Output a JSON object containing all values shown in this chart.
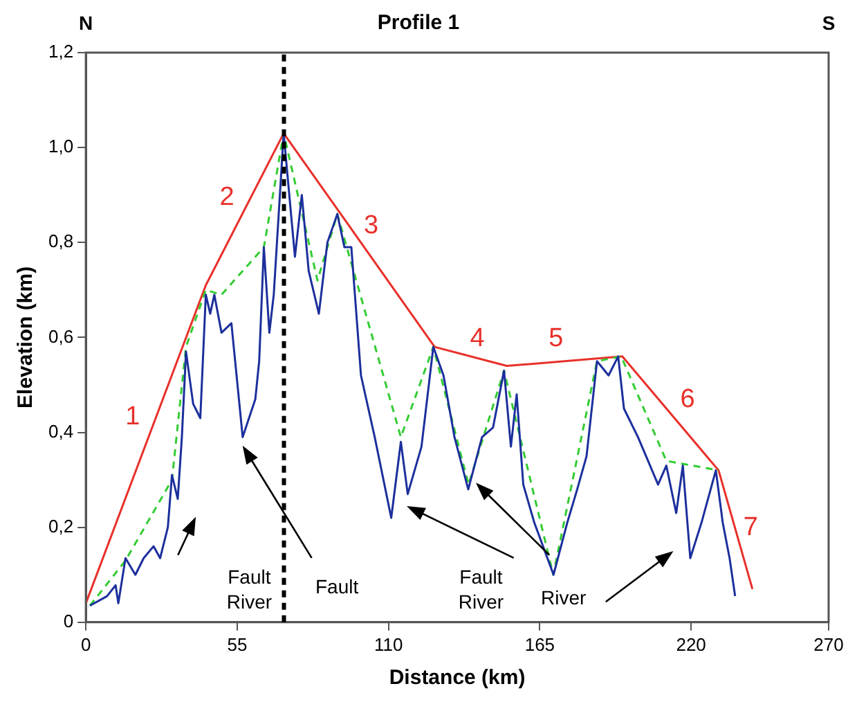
{
  "chart_data": {
    "type": "line",
    "title": "Profile 1",
    "xlabel": "Distance (km)",
    "ylabel": "Elevation (km)",
    "xlim": [
      0,
      270
    ],
    "xticks": [
      0,
      55,
      110,
      165,
      220,
      270
    ],
    "ylim": [
      0,
      1.2
    ],
    "yticks": [
      0,
      {
        "value": 0.2,
        "label": "0,2"
      },
      {
        "value": 0.4,
        "label": "0,4"
      },
      {
        "value": 0.6,
        "label": "0,6"
      },
      {
        "value": 0.8,
        "label": "0,8"
      },
      {
        "value": 1.0,
        "label": "1,0"
      },
      {
        "value": 1.2,
        "label": "1,2"
      }
    ],
    "grid": false,
    "legend": false,
    "marker": "none",
    "series": [
      {
        "color": "#1c2f9c",
        "line_style": "solid",
        "x": [
          1.5,
          7.7,
          10.8,
          11.8,
          14.4,
          18,
          21,
          24.6,
          27,
          29.8,
          31.3,
          33.4,
          34.9,
          36.4,
          39,
          41.6,
          43.6,
          45.2,
          46.7,
          49.3,
          52.9,
          57,
          61.6,
          63,
          64.7,
          66.7,
          68.3,
          71.9,
          76,
          78.5,
          81,
          84.7,
          87.8,
          91.4,
          94,
          96.5,
          100,
          105,
          111,
          114.5,
          117,
          122,
          126.3,
          130,
          134,
          139,
          144,
          148,
          152,
          154.5,
          156.6,
          159,
          163,
          170,
          175,
          178.6,
          182,
          185.8,
          190,
          193.5,
          195.6,
          200.7,
          208,
          211,
          214.6,
          217,
          219.7,
          223.8,
          229,
          231.5,
          234,
          236
        ],
        "values": [
          0.035,
          0.055,
          0.078,
          0.04,
          0.135,
          0.1,
          0.135,
          0.16,
          0.135,
          0.2,
          0.31,
          0.26,
          0.39,
          0.57,
          0.46,
          0.43,
          0.69,
          0.65,
          0.69,
          0.61,
          0.63,
          0.39,
          0.47,
          0.55,
          0.79,
          0.61,
          0.69,
          1.03,
          0.77,
          0.9,
          0.74,
          0.65,
          0.8,
          0.86,
          0.79,
          0.79,
          0.52,
          0.39,
          0.22,
          0.38,
          0.27,
          0.37,
          0.58,
          0.52,
          0.39,
          0.28,
          0.39,
          0.41,
          0.53,
          0.37,
          0.48,
          0.29,
          0.21,
          0.1,
          0.21,
          0.28,
          0.35,
          0.55,
          0.52,
          0.56,
          0.45,
          0.39,
          0.29,
          0.33,
          0.23,
          0.33,
          0.135,
          0.21,
          0.32,
          0.21,
          0.135,
          0.055
        ]
      },
      {
        "color": "#33cc33",
        "line_style": "dashed",
        "x": [
          1.5,
          14.4,
          31.3,
          36.4,
          43.6,
          49.3,
          64.7,
          71.9,
          84.2,
          91.4,
          114.5,
          126.3,
          139.1,
          152,
          169.9,
          185.8,
          194.6,
          211,
          230
        ],
        "values": [
          0.035,
          0.13,
          0.3,
          0.58,
          0.7,
          0.69,
          0.79,
          1.03,
          0.72,
          0.86,
          0.39,
          0.58,
          0.29,
          0.53,
          0.1,
          0.55,
          0.56,
          0.34,
          0.32
        ]
      },
      {
        "color": "#e8302a",
        "line_style": "solid",
        "x": [
          0,
          43.6,
          71.9,
          126.8,
          153,
          195,
          230,
          242.3
        ],
        "values": [
          0.04,
          0.71,
          1.03,
          0.58,
          0.54,
          0.56,
          0.32,
          0.07
        ]
      }
    ],
    "ref_lines": [
      {
        "axis": "x",
        "value": 72,
        "color": "#000000",
        "line_style": "dashed"
      }
    ],
    "annotations": [
      "N",
      "S",
      "1",
      "2",
      "3",
      "4",
      "5",
      "6",
      "7",
      "Fault\nRiver",
      "Fault",
      "Fault\nRiver",
      "River"
    ]
  }
}
